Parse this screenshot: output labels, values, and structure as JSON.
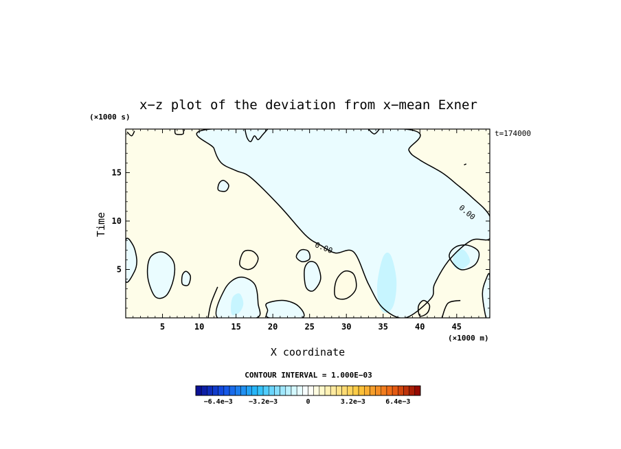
{
  "chart_data": {
    "type": "heatmap",
    "title": "x−z plot of the deviation from x−mean Exner",
    "xlabel": "X coordinate",
    "ylabel": "Time",
    "x_unit": "(×1000 m)",
    "y_unit": "(×1000 s)",
    "time_label": "t=174000",
    "xlim": [
      0,
      49.5
    ],
    "ylim": [
      0,
      19.5
    ],
    "x_ticks": [
      5,
      10,
      15,
      20,
      25,
      30,
      35,
      40,
      45
    ],
    "y_ticks": [
      5,
      10,
      15
    ],
    "contour_label": "0.00",
    "contour_interval_text": "CONTOUR INTERVAL = 1.000E−03",
    "colorbar": {
      "min": -0.008,
      "max": 0.008,
      "levels": 40,
      "tick_values": [
        -0.0064,
        -0.0032,
        0,
        0.0032,
        0.0064
      ],
      "tick_labels": [
        "−6.4e−3",
        "−3.2e−3",
        "0",
        "3.2e−3",
        "6.4e−3"
      ]
    },
    "regions": [
      {
        "sign": "negative",
        "description_level": "light",
        "value": -0.0005,
        "outline": [
          [
            11.5,
            19.5
          ],
          [
            12.0,
            17.5
          ],
          [
            13.0,
            16.0
          ],
          [
            15.0,
            15.2
          ],
          [
            17.0,
            14.5
          ],
          [
            21.0,
            11.5
          ],
          [
            24.5,
            8.5
          ],
          [
            26.5,
            7.5
          ],
          [
            28.5,
            6.7
          ],
          [
            31.0,
            6.8
          ],
          [
            33.0,
            3.5
          ],
          [
            35.0,
            1.0
          ],
          [
            38.0,
            0.0
          ],
          [
            41.5,
            2.0
          ],
          [
            42.0,
            3.5
          ],
          [
            44.0,
            6.0
          ],
          [
            47.0,
            8.0
          ],
          [
            49.5,
            8.2
          ],
          [
            49.5,
            10.5
          ],
          [
            47.0,
            12.5
          ],
          [
            45.0,
            13.8
          ],
          [
            43.0,
            15.0
          ],
          [
            40.0,
            16.3
          ],
          [
            38.5,
            17.3
          ],
          [
            38.0,
            19.5
          ]
        ]
      },
      {
        "sign": "negative",
        "value": -0.0005,
        "outline": [
          [
            3.0,
            4.2
          ],
          [
            4.0,
            2.2
          ],
          [
            5.5,
            2.3
          ],
          [
            6.5,
            4.0
          ],
          [
            6.5,
            5.8
          ],
          [
            5.0,
            6.8
          ],
          [
            3.3,
            6.2
          ]
        ]
      },
      {
        "sign": "negative",
        "value": -0.0005,
        "outline": [
          [
            12.5,
            0
          ],
          [
            13.5,
            3.0
          ],
          [
            15.5,
            4.2
          ],
          [
            17.5,
            3.5
          ],
          [
            18.0,
            1.5
          ],
          [
            17.8,
            0
          ]
        ]
      },
      {
        "sign": "negative",
        "value": -0.0005,
        "outline": [
          [
            0,
            3.8
          ],
          [
            1.2,
            4.8
          ],
          [
            1.5,
            6.0
          ],
          [
            1.0,
            7.5
          ],
          [
            0,
            8.0
          ]
        ]
      },
      {
        "sign": "negative",
        "value": -0.0005,
        "outline": [
          [
            49.0,
            0
          ],
          [
            48.5,
            2.5
          ],
          [
            49.0,
            4.0
          ],
          [
            49.5,
            4.3
          ],
          [
            49.5,
            0
          ]
        ]
      },
      {
        "sign": "negative",
        "value": -0.0005,
        "outline": [
          [
            24.5,
            3.2
          ],
          [
            25.5,
            2.8
          ],
          [
            26.5,
            4.0
          ],
          [
            26.0,
            5.5
          ],
          [
            25.0,
            5.8
          ],
          [
            24.3,
            5.0
          ]
        ]
      },
      {
        "sign": "negative",
        "value": -0.0005,
        "outline": [
          [
            19.2,
            1.5
          ],
          [
            21.5,
            1.8
          ],
          [
            23.5,
            1.2
          ],
          [
            24.0,
            0
          ],
          [
            19.5,
            0
          ],
          [
            19.3,
            0.8
          ]
        ]
      },
      {
        "sign": "negative",
        "value": -0.0005,
        "outline": [
          [
            23.2,
            6.3
          ],
          [
            24.0,
            5.8
          ],
          [
            25.0,
            6.1
          ],
          [
            24.8,
            6.9
          ],
          [
            23.8,
            7.0
          ]
        ]
      },
      {
        "sign": "negative",
        "value": -0.0005,
        "outline": [
          [
            7.7,
            3.5
          ],
          [
            8.5,
            3.4
          ],
          [
            8.8,
            4.3
          ],
          [
            8.2,
            4.8
          ],
          [
            7.7,
            4.4
          ]
        ]
      },
      {
        "sign": "negative",
        "value": -0.0005,
        "outline": [
          [
            12.6,
            13.2
          ],
          [
            13.6,
            13.1
          ],
          [
            14.0,
            13.7
          ],
          [
            13.3,
            14.2
          ],
          [
            12.7,
            13.9
          ]
        ]
      },
      {
        "sign": "negative",
        "value": -0.0005,
        "outline": [
          [
            44.0,
            6.3
          ],
          [
            45.5,
            5.0
          ],
          [
            47.5,
            5.5
          ],
          [
            48.0,
            6.8
          ],
          [
            46.5,
            7.5
          ],
          [
            44.8,
            7.3
          ]
        ]
      },
      {
        "sign": "negative",
        "value": -0.0012,
        "outline": [
          [
            34.5,
            1.2
          ],
          [
            35.5,
            0.5
          ],
          [
            36.5,
            1.5
          ],
          [
            36.8,
            4.0
          ],
          [
            36.0,
            6.5
          ],
          [
            35.0,
            6.3
          ],
          [
            34.2,
            3.5
          ]
        ]
      },
      {
        "sign": "negative",
        "value": -0.0012,
        "outline": [
          [
            14.5,
            0.3
          ],
          [
            15.5,
            0.6
          ],
          [
            16.0,
            1.5
          ],
          [
            15.5,
            2.5
          ],
          [
            14.6,
            2.2
          ],
          [
            14.3,
            1.2
          ]
        ]
      },
      {
        "sign": "negative",
        "value": -0.0012,
        "outline": [
          [
            44.5,
            5.5
          ],
          [
            45.5,
            5.0
          ],
          [
            46.8,
            5.8
          ],
          [
            46.0,
            7.0
          ],
          [
            44.8,
            6.8
          ]
        ]
      },
      {
        "sign": "positive",
        "value": 0.0005,
        "outline": [
          [
            15.5,
            5.5
          ],
          [
            16.5,
            5.0
          ],
          [
            17.5,
            5.3
          ],
          [
            18.0,
            6.2
          ],
          [
            17.2,
            6.9
          ],
          [
            16.0,
            6.8
          ]
        ]
      },
      {
        "sign": "positive",
        "value": 0.0005,
        "outline": [
          [
            28.5,
            2.2
          ],
          [
            30.0,
            2.0
          ],
          [
            31.3,
            3.0
          ],
          [
            31.0,
            4.5
          ],
          [
            29.7,
            4.8
          ],
          [
            28.6,
            3.8
          ]
        ]
      },
      {
        "sign": "positive",
        "value": 0.0005,
        "outline": [
          [
            40.0,
            0.2
          ],
          [
            41.0,
            0.5
          ],
          [
            41.3,
            1.3
          ],
          [
            40.5,
            1.8
          ],
          [
            39.8,
            1.2
          ]
        ]
      }
    ],
    "contours_extra": [
      [
        [
          0.2,
          19.2
        ],
        [
          0.8,
          18.8
        ],
        [
          1.2,
          19.3
        ]
      ],
      [
        [
          6.7,
          19.5
        ],
        [
          6.8,
          19.0
        ],
        [
          7.8,
          19.0
        ],
        [
          7.8,
          19.5
        ]
      ],
      [
        [
          16.2,
          19.5
        ],
        [
          16.5,
          18.6
        ],
        [
          17.0,
          18.2
        ],
        [
          17.5,
          18.8
        ],
        [
          18.0,
          18.4
        ],
        [
          18.6,
          18.9
        ],
        [
          19.3,
          19.5
        ]
      ],
      [
        [
          33.0,
          19.5
        ],
        [
          33.8,
          19.0
        ],
        [
          34.5,
          19.5
        ]
      ],
      [
        [
          46.0,
          15.8
        ],
        [
          46.3,
          15.9
        ]
      ],
      [
        [
          11.2,
          0
        ],
        [
          11.6,
          1.5
        ],
        [
          12.5,
          3.2
        ]
      ],
      [
        [
          43.0,
          0
        ],
        [
          43.8,
          1.5
        ],
        [
          45.5,
          1.8
        ]
      ]
    ],
    "contour_labels": [
      {
        "text": "0.00",
        "x": 26.8,
        "y": 7.0,
        "angle": 22
      },
      {
        "text": "0.00",
        "x": 46.2,
        "y": 10.7,
        "angle": 40
      }
    ],
    "grid": false,
    "legend": "colorbar-bottom"
  }
}
